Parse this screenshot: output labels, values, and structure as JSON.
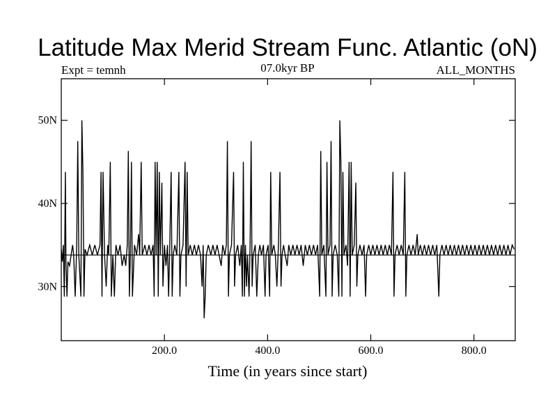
{
  "chart_data": {
    "type": "line",
    "title": "Latitude Max Merid Stream Func. Atlantic (oN)",
    "subtitle_left": "Expt = temnh",
    "subtitle_center": "07.0kyr BP",
    "subtitle_right": "ALL_MONTHS",
    "xlabel": "Time (in years since start)",
    "ylabel": "",
    "xlim": [
      0,
      880
    ],
    "ylim": [
      23.5,
      55
    ],
    "x_ticks": [
      {
        "value": 200,
        "label": "200.0"
      },
      {
        "value": 400,
        "label": "400.0"
      },
      {
        "value": 600,
        "label": "600.0"
      },
      {
        "value": 800,
        "label": "800.0"
      }
    ],
    "y_ticks": [
      {
        "value": 30,
        "label": "30N"
      },
      {
        "value": 40,
        "label": "40N"
      },
      {
        "value": 50,
        "label": "50N"
      }
    ],
    "baseline": 33.8,
    "series_points": [
      [
        0,
        34.5
      ],
      [
        2,
        33
      ],
      [
        4,
        35
      ],
      [
        6,
        28.8
      ],
      [
        8,
        43.8
      ],
      [
        9,
        33
      ],
      [
        11,
        28.8
      ],
      [
        13,
        33
      ],
      [
        16,
        32.5
      ],
      [
        19,
        33.8
      ],
      [
        22,
        35
      ],
      [
        24,
        33.8
      ],
      [
        27,
        28.8
      ],
      [
        30,
        35
      ],
      [
        32,
        47.5
      ],
      [
        34,
        33.8
      ],
      [
        38,
        28.8
      ],
      [
        40,
        50
      ],
      [
        42,
        43.8
      ],
      [
        44,
        28.8
      ],
      [
        46,
        34.5
      ],
      [
        50,
        33.8
      ],
      [
        55,
        35
      ],
      [
        60,
        33.8
      ],
      [
        65,
        35
      ],
      [
        70,
        33.8
      ],
      [
        75,
        35
      ],
      [
        77,
        43.8
      ],
      [
        79,
        28.8
      ],
      [
        81,
        43.8
      ],
      [
        84,
        33.8
      ],
      [
        87,
        30
      ],
      [
        90,
        35
      ],
      [
        92,
        33.8
      ],
      [
        95,
        45
      ],
      [
        97,
        28.8
      ],
      [
        100,
        33.8
      ],
      [
        103,
        28.8
      ],
      [
        106,
        35
      ],
      [
        110,
        33.8
      ],
      [
        114,
        35
      ],
      [
        118,
        32.5
      ],
      [
        122,
        33.8
      ],
      [
        125,
        32.5
      ],
      [
        128,
        35
      ],
      [
        130,
        46.3
      ],
      [
        132,
        28.8
      ],
      [
        134,
        33.8
      ],
      [
        136,
        45
      ],
      [
        138,
        28.8
      ],
      [
        142,
        35
      ],
      [
        146,
        33.8
      ],
      [
        150,
        36.3
      ],
      [
        152,
        33.8
      ],
      [
        155,
        45
      ],
      [
        157,
        33.8
      ],
      [
        162,
        35
      ],
      [
        166,
        33.8
      ],
      [
        170,
        35
      ],
      [
        174,
        33.8
      ],
      [
        178,
        35
      ],
      [
        180,
        28.8
      ],
      [
        182,
        45
      ],
      [
        184,
        33.8
      ],
      [
        186,
        45
      ],
      [
        188,
        28.8
      ],
      [
        190,
        43.8
      ],
      [
        192,
        33.8
      ],
      [
        195,
        42.5
      ],
      [
        197,
        30
      ],
      [
        200,
        35
      ],
      [
        203,
        32.5
      ],
      [
        206,
        35
      ],
      [
        208,
        28.8
      ],
      [
        210,
        33.8
      ],
      [
        213,
        43.8
      ],
      [
        215,
        28.8
      ],
      [
        217,
        33.8
      ],
      [
        220,
        35
      ],
      [
        224,
        33.8
      ],
      [
        228,
        43.8
      ],
      [
        230,
        28.8
      ],
      [
        232,
        33.8
      ],
      [
        236,
        35
      ],
      [
        240,
        45
      ],
      [
        242,
        30
      ],
      [
        244,
        43.8
      ],
      [
        246,
        33.8
      ],
      [
        250,
        35
      ],
      [
        254,
        33.8
      ],
      [
        258,
        35
      ],
      [
        262,
        33.8
      ],
      [
        266,
        35
      ],
      [
        270,
        33.8
      ],
      [
        273,
        30
      ],
      [
        275,
        35
      ],
      [
        277,
        26.2
      ],
      [
        279,
        28.8
      ],
      [
        281,
        33.8
      ],
      [
        285,
        35
      ],
      [
        290,
        33.8
      ],
      [
        294,
        35
      ],
      [
        298,
        33.8
      ],
      [
        302,
        35
      ],
      [
        306,
        33.8
      ],
      [
        310,
        32.5
      ],
      [
        313,
        35
      ],
      [
        317,
        33.8
      ],
      [
        320,
        35
      ],
      [
        322,
        47.5
      ],
      [
        324,
        28.8
      ],
      [
        326,
        33.8
      ],
      [
        330,
        35
      ],
      [
        334,
        43.8
      ],
      [
        336,
        30
      ],
      [
        338,
        33.8
      ],
      [
        342,
        35
      ],
      [
        346,
        32.5
      ],
      [
        349,
        35
      ],
      [
        351,
        28.8
      ],
      [
        353,
        45
      ],
      [
        355,
        28.8
      ],
      [
        357,
        35
      ],
      [
        359,
        30
      ],
      [
        361,
        33.8
      ],
      [
        364,
        28.8
      ],
      [
        366,
        35
      ],
      [
        368,
        47.5
      ],
      [
        370,
        30
      ],
      [
        372,
        33.8
      ],
      [
        376,
        35
      ],
      [
        379,
        28.8
      ],
      [
        382,
        33.8
      ],
      [
        385,
        35
      ],
      [
        388,
        33.8
      ],
      [
        392,
        35
      ],
      [
        395,
        28.8
      ],
      [
        397,
        33.8
      ],
      [
        401,
        35
      ],
      [
        404,
        28.8
      ],
      [
        406,
        43.8
      ],
      [
        408,
        33.8
      ],
      [
        412,
        35
      ],
      [
        415,
        33.8
      ],
      [
        418,
        30
      ],
      [
        421,
        35
      ],
      [
        424,
        43.8
      ],
      [
        426,
        30
      ],
      [
        428,
        33.8
      ],
      [
        431,
        35
      ],
      [
        434,
        33.8
      ],
      [
        438,
        32.5
      ],
      [
        441,
        35
      ],
      [
        445,
        33.8
      ],
      [
        449,
        35
      ],
      [
        453,
        33.8
      ],
      [
        457,
        35
      ],
      [
        461,
        33.8
      ],
      [
        465,
        35
      ],
      [
        469,
        32.5
      ],
      [
        473,
        35
      ],
      [
        477,
        33.8
      ],
      [
        481,
        35
      ],
      [
        485,
        33.8
      ],
      [
        489,
        35
      ],
      [
        493,
        33.8
      ],
      [
        497,
        35
      ],
      [
        501,
        28.8
      ],
      [
        503,
        46.3
      ],
      [
        505,
        33.8
      ],
      [
        509,
        35
      ],
      [
        513,
        28.8
      ],
      [
        515,
        45
      ],
      [
        517,
        33.8
      ],
      [
        521,
        35
      ],
      [
        523,
        47.5
      ],
      [
        525,
        28.8
      ],
      [
        527,
        33.8
      ],
      [
        531,
        35
      ],
      [
        535,
        33.8
      ],
      [
        538,
        28.8
      ],
      [
        540,
        50
      ],
      [
        542,
        45
      ],
      [
        544,
        28.8
      ],
      [
        546,
        43.8
      ],
      [
        548,
        33.8
      ],
      [
        552,
        35
      ],
      [
        555,
        32.5
      ],
      [
        558,
        45
      ],
      [
        560,
        28.8
      ],
      [
        562,
        45
      ],
      [
        564,
        33.8
      ],
      [
        568,
        35
      ],
      [
        571,
        42.5
      ],
      [
        573,
        30
      ],
      [
        575,
        33.8
      ],
      [
        579,
        35
      ],
      [
        583,
        33.8
      ],
      [
        587,
        35
      ],
      [
        590,
        28.8
      ],
      [
        592,
        33.8
      ],
      [
        596,
        35
      ],
      [
        600,
        33.8
      ],
      [
        604,
        35
      ],
      [
        608,
        33.8
      ],
      [
        612,
        35
      ],
      [
        616,
        33.8
      ],
      [
        620,
        35
      ],
      [
        624,
        33.8
      ],
      [
        628,
        35
      ],
      [
        632,
        33.8
      ],
      [
        636,
        35
      ],
      [
        640,
        33.8
      ],
      [
        643,
        43.8
      ],
      [
        645,
        28.8
      ],
      [
        647,
        33.8
      ],
      [
        651,
        35
      ],
      [
        655,
        33.8
      ],
      [
        659,
        35
      ],
      [
        663,
        33.8
      ],
      [
        666,
        43.8
      ],
      [
        668,
        28.8
      ],
      [
        670,
        33.8
      ],
      [
        674,
        35
      ],
      [
        678,
        33.8
      ],
      [
        682,
        35
      ],
      [
        686,
        33.8
      ],
      [
        690,
        36.3
      ],
      [
        692,
        33.8
      ],
      [
        696,
        35
      ],
      [
        700,
        33.8
      ],
      [
        704,
        35
      ],
      [
        708,
        33.8
      ],
      [
        712,
        35
      ],
      [
        716,
        33.8
      ],
      [
        720,
        35
      ],
      [
        724,
        33.8
      ],
      [
        728,
        35
      ],
      [
        732,
        28.8
      ],
      [
        734,
        33.8
      ],
      [
        738,
        35
      ],
      [
        742,
        33.8
      ],
      [
        746,
        35
      ],
      [
        750,
        33.8
      ],
      [
        754,
        35
      ],
      [
        758,
        33.8
      ],
      [
        762,
        35
      ],
      [
        766,
        33.8
      ],
      [
        770,
        35
      ],
      [
        774,
        33.8
      ],
      [
        778,
        35
      ],
      [
        782,
        33.8
      ],
      [
        786,
        35
      ],
      [
        790,
        33.8
      ],
      [
        794,
        35
      ],
      [
        798,
        33.8
      ],
      [
        802,
        35
      ],
      [
        806,
        33.8
      ],
      [
        810,
        35
      ],
      [
        814,
        33.8
      ],
      [
        818,
        35
      ],
      [
        822,
        33.8
      ],
      [
        826,
        35
      ],
      [
        830,
        33.8
      ],
      [
        834,
        35
      ],
      [
        838,
        33.8
      ],
      [
        842,
        35
      ],
      [
        846,
        33.8
      ],
      [
        850,
        35
      ],
      [
        854,
        33.8
      ],
      [
        858,
        35
      ],
      [
        862,
        33.8
      ],
      [
        866,
        35
      ],
      [
        870,
        33.8
      ],
      [
        874,
        35
      ],
      [
        878,
        34.5
      ]
    ]
  }
}
